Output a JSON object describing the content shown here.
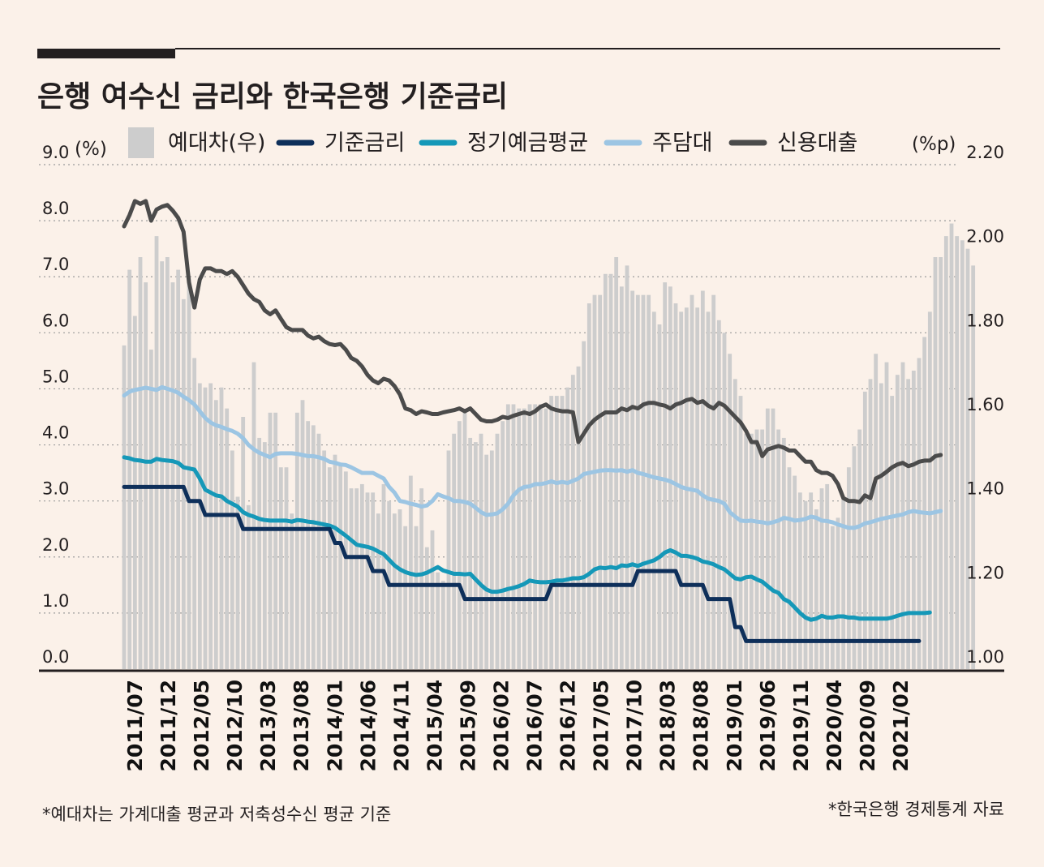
{
  "chart_data": {
    "type": "bar+line",
    "title": "은행 여수신 금리와 한국은행 기준금리",
    "left_axis": {
      "unit": "(%)",
      "range": [
        0,
        9
      ],
      "ticks": [
        "9.0",
        "8.0",
        "7.0",
        "6.0",
        "5.0",
        "4.0",
        "3.0",
        "2.0",
        "1.0",
        "0.0"
      ]
    },
    "right_axis": {
      "unit": "(%p)",
      "range": [
        1.0,
        2.2
      ],
      "ticks": [
        "2.20",
        "2.00",
        "1.80",
        "1.60",
        "1.40",
        "1.20",
        "1.00"
      ]
    },
    "x_ticks": [
      "2011/07",
      "2011/12",
      "2012/05",
      "2012/10",
      "2013/03",
      "2013/08",
      "2014/01",
      "2014/06",
      "2014/11",
      "2015/04",
      "2015/09",
      "2016/02",
      "2016/07",
      "2016/12",
      "2017/05",
      "2017/10",
      "2018/03",
      "2018/08",
      "2019/01",
      "2019/06",
      "2019/11",
      "2020/04",
      "2020/09",
      "2021/02"
    ],
    "legend": [
      {
        "name": "예대차(우)",
        "kind": "bar",
        "color": "#cdcdcd"
      },
      {
        "name": "기준금리",
        "kind": "line",
        "color": "#0e2f5a"
      },
      {
        "name": "정기예금평균",
        "kind": "line",
        "color": "#1598b8"
      },
      {
        "name": "주담대",
        "kind": "line",
        "color": "#9cc5e3"
      },
      {
        "name": "신용대출",
        "kind": "line",
        "color": "#4b4b4b"
      }
    ],
    "series": [
      {
        "name": "예대차(우)",
        "axis": "right",
        "values": [
          1.77,
          1.95,
          1.84,
          1.98,
          1.92,
          1.76,
          2.03,
          1.97,
          1.98,
          1.92,
          1.95,
          1.88,
          1.93,
          1.74,
          1.68,
          1.67,
          1.68,
          1.64,
          1.67,
          1.62,
          1.52,
          1.41,
          1.6,
          1.39,
          1.73,
          1.55,
          1.54,
          1.61,
          1.61,
          1.48,
          1.48,
          1.37,
          1.61,
          1.64,
          1.59,
          1.58,
          1.56,
          1.52,
          1.48,
          1.51,
          1.49,
          1.47,
          1.43,
          1.43,
          1.44,
          1.42,
          1.42,
          1.37,
          1.44,
          1.4,
          1.37,
          1.38,
          1.34,
          1.46,
          1.34,
          1.43,
          1.29,
          1.33,
          1.23,
          1.21,
          1.52,
          1.56,
          1.59,
          1.61,
          1.55,
          1.54,
          1.56,
          1.51,
          1.52,
          1.56,
          1.59,
          1.63,
          1.63,
          1.62,
          1.62,
          1.63,
          1.63,
          1.63,
          1.62,
          1.65,
          1.65,
          1.65,
          1.67,
          1.7,
          1.72,
          1.78,
          1.87,
          1.89,
          1.89,
          1.94,
          1.94,
          1.98,
          1.91,
          1.96,
          1.9,
          1.89,
          1.89,
          1.89,
          1.85,
          1.82,
          1.92,
          1.91,
          1.87,
          1.85,
          1.86,
          1.89,
          1.86,
          1.9,
          1.85,
          1.89,
          1.83,
          1.8,
          1.75,
          1.69,
          1.65,
          1.56,
          1.56,
          1.57,
          1.57,
          1.62,
          1.62,
          1.57,
          1.55,
          1.48,
          1.46,
          1.42,
          1.4,
          1.42,
          1.38,
          1.43,
          1.44,
          1.34,
          1.36,
          1.41,
          1.48,
          1.53,
          1.57,
          1.66,
          1.69,
          1.75,
          1.68,
          1.73,
          1.65,
          1.7,
          1.73,
          1.69,
          1.71,
          1.74,
          1.79,
          1.85,
          1.98,
          1.98,
          2.03,
          2.06,
          2.03,
          2.02,
          2.0,
          1.96
        ]
      },
      {
        "name": "기준금리",
        "axis": "left",
        "values": [
          3.25,
          3.25,
          3.25,
          3.25,
          3.25,
          3.25,
          3.25,
          3.25,
          3.25,
          3.25,
          3.25,
          3.25,
          3.0,
          3.0,
          3.0,
          2.75,
          2.75,
          2.75,
          2.75,
          2.75,
          2.75,
          2.75,
          2.5,
          2.5,
          2.5,
          2.5,
          2.5,
          2.5,
          2.5,
          2.5,
          2.5,
          2.5,
          2.5,
          2.5,
          2.5,
          2.5,
          2.5,
          2.5,
          2.5,
          2.25,
          2.25,
          2.0,
          2.0,
          2.0,
          2.0,
          2.0,
          1.75,
          1.75,
          1.75,
          1.5,
          1.5,
          1.5,
          1.5,
          1.5,
          1.5,
          1.5,
          1.5,
          1.5,
          1.5,
          1.5,
          1.5,
          1.5,
          1.5,
          1.25,
          1.25,
          1.25,
          1.25,
          1.25,
          1.25,
          1.25,
          1.25,
          1.25,
          1.25,
          1.25,
          1.25,
          1.25,
          1.25,
          1.25,
          1.25,
          1.5,
          1.5,
          1.5,
          1.5,
          1.5,
          1.5,
          1.5,
          1.5,
          1.5,
          1.5,
          1.5,
          1.5,
          1.5,
          1.5,
          1.5,
          1.5,
          1.75,
          1.75,
          1.75,
          1.75,
          1.75,
          1.75,
          1.75,
          1.75,
          1.5,
          1.5,
          1.5,
          1.5,
          1.5,
          1.25,
          1.25,
          1.25,
          1.25,
          1.25,
          0.75,
          0.75,
          0.5,
          0.5,
          0.5,
          0.5,
          0.5,
          0.5,
          0.5,
          0.5,
          0.5,
          0.5,
          0.5,
          0.5,
          0.5,
          0.5,
          0.5,
          0.5,
          0.5,
          0.5,
          0.5,
          0.5,
          0.5,
          0.5,
          0.5,
          0.5,
          0.5,
          0.5,
          0.5,
          0.5,
          0.5,
          0.5,
          0.5,
          0.5,
          0.5
        ]
      },
      {
        "name": "정기예금평균",
        "axis": "left",
        "values": [
          3.78,
          3.76,
          3.73,
          3.72,
          3.7,
          3.7,
          3.75,
          3.73,
          3.72,
          3.71,
          3.68,
          3.6,
          3.58,
          3.56,
          3.4,
          3.2,
          3.15,
          3.1,
          3.08,
          3.0,
          2.95,
          2.9,
          2.8,
          2.75,
          2.72,
          2.68,
          2.66,
          2.65,
          2.65,
          2.65,
          2.65,
          2.63,
          2.66,
          2.65,
          2.63,
          2.62,
          2.6,
          2.58,
          2.56,
          2.52,
          2.45,
          2.38,
          2.3,
          2.22,
          2.2,
          2.18,
          2.15,
          2.1,
          2.05,
          1.95,
          1.85,
          1.78,
          1.73,
          1.7,
          1.68,
          1.69,
          1.72,
          1.77,
          1.82,
          1.76,
          1.73,
          1.7,
          1.7,
          1.69,
          1.7,
          1.6,
          1.5,
          1.42,
          1.38,
          1.38,
          1.4,
          1.43,
          1.45,
          1.48,
          1.52,
          1.58,
          1.56,
          1.55,
          1.55,
          1.56,
          1.58,
          1.58,
          1.6,
          1.62,
          1.62,
          1.64,
          1.7,
          1.78,
          1.81,
          1.8,
          1.82,
          1.8,
          1.85,
          1.84,
          1.87,
          1.84,
          1.88,
          1.91,
          1.94,
          2.0,
          2.08,
          2.12,
          2.08,
          2.02,
          2.02,
          2.0,
          1.97,
          1.92,
          1.9,
          1.87,
          1.82,
          1.78,
          1.7,
          1.62,
          1.6,
          1.64,
          1.65,
          1.6,
          1.56,
          1.48,
          1.4,
          1.36,
          1.25,
          1.2,
          1.1,
          1.0,
          0.92,
          0.88,
          0.9,
          0.95,
          0.92,
          0.92,
          0.94,
          0.94,
          0.92,
          0.92,
          0.9,
          0.9,
          0.9,
          0.9,
          0.9,
          0.9,
          0.92,
          0.95,
          0.98,
          1.0,
          1.0,
          1.0,
          1.0,
          1.01
        ]
      },
      {
        "name": "주담대",
        "axis": "left",
        "values": [
          4.88,
          4.95,
          4.98,
          5.0,
          5.02,
          5.0,
          4.98,
          5.03,
          5.0,
          4.97,
          4.93,
          4.86,
          4.8,
          4.72,
          4.6,
          4.48,
          4.4,
          4.35,
          4.32,
          4.28,
          4.25,
          4.2,
          4.12,
          4.0,
          3.92,
          3.86,
          3.82,
          3.78,
          3.84,
          3.85,
          3.85,
          3.85,
          3.84,
          3.82,
          3.8,
          3.8,
          3.78,
          3.75,
          3.7,
          3.68,
          3.65,
          3.64,
          3.6,
          3.55,
          3.5,
          3.5,
          3.5,
          3.45,
          3.4,
          3.25,
          3.15,
          3.0,
          2.98,
          2.95,
          2.93,
          2.9,
          2.92,
          3.0,
          3.12,
          3.08,
          3.05,
          3.0,
          3.0,
          2.98,
          2.95,
          2.88,
          2.8,
          2.75,
          2.76,
          2.78,
          2.85,
          2.95,
          3.1,
          3.2,
          3.25,
          3.26,
          3.3,
          3.3,
          3.32,
          3.35,
          3.32,
          3.34,
          3.32,
          3.36,
          3.4,
          3.48,
          3.5,
          3.52,
          3.54,
          3.55,
          3.55,
          3.54,
          3.55,
          3.52,
          3.55,
          3.5,
          3.48,
          3.45,
          3.42,
          3.4,
          3.38,
          3.35,
          3.3,
          3.25,
          3.22,
          3.2,
          3.18,
          3.1,
          3.04,
          3.02,
          3.0,
          2.95,
          2.8,
          2.72,
          2.65,
          2.64,
          2.65,
          2.63,
          2.62,
          2.6,
          2.62,
          2.65,
          2.7,
          2.68,
          2.65,
          2.66,
          2.68,
          2.72,
          2.7,
          2.65,
          2.64,
          2.62,
          2.58,
          2.55,
          2.52,
          2.52,
          2.55,
          2.6,
          2.62,
          2.65,
          2.68,
          2.7,
          2.72,
          2.74,
          2.76,
          2.8,
          2.82,
          2.8,
          2.79,
          2.78,
          2.8,
          2.82
        ]
      },
      {
        "name": "신용대출",
        "axis": "left",
        "values": [
          7.9,
          8.1,
          8.35,
          8.3,
          8.35,
          8.0,
          8.2,
          8.25,
          8.28,
          8.18,
          8.05,
          7.8,
          6.9,
          6.45,
          6.95,
          7.15,
          7.15,
          7.1,
          7.1,
          7.05,
          7.1,
          7.0,
          6.85,
          6.7,
          6.6,
          6.55,
          6.4,
          6.33,
          6.4,
          6.25,
          6.1,
          6.05,
          6.05,
          6.05,
          5.95,
          5.9,
          5.93,
          5.85,
          5.8,
          5.78,
          5.8,
          5.7,
          5.55,
          5.5,
          5.4,
          5.25,
          5.15,
          5.1,
          5.18,
          5.15,
          5.05,
          4.9,
          4.65,
          4.62,
          4.55,
          4.6,
          4.58,
          4.55,
          4.55,
          4.58,
          4.6,
          4.62,
          4.65,
          4.6,
          4.65,
          4.55,
          4.45,
          4.42,
          4.42,
          4.45,
          4.5,
          4.48,
          4.52,
          4.55,
          4.58,
          4.55,
          4.6,
          4.68,
          4.72,
          4.65,
          4.62,
          4.6,
          4.6,
          4.58,
          4.05,
          4.2,
          4.35,
          4.45,
          4.52,
          4.58,
          4.58,
          4.58,
          4.65,
          4.62,
          4.68,
          4.65,
          4.72,
          4.75,
          4.75,
          4.72,
          4.7,
          4.65,
          4.72,
          4.75,
          4.8,
          4.82,
          4.75,
          4.78,
          4.7,
          4.65,
          4.75,
          4.7,
          4.6,
          4.5,
          4.4,
          4.25,
          4.05,
          4.05,
          3.8,
          3.92,
          3.95,
          3.98,
          3.95,
          3.9,
          3.9,
          3.8,
          3.7,
          3.7,
          3.55,
          3.5,
          3.5,
          3.45,
          3.3,
          3.05,
          3.0,
          3.0,
          2.98,
          3.1,
          3.05,
          3.4,
          3.45,
          3.52,
          3.6,
          3.65,
          3.68,
          3.62,
          3.65,
          3.7,
          3.72,
          3.72,
          3.8,
          3.82
        ]
      }
    ]
  },
  "footnotes": {
    "left": "*예대차는 가계대출 평균과 저축성수신 평균 기준",
    "right": "*한국은행 경제통계 자료"
  }
}
